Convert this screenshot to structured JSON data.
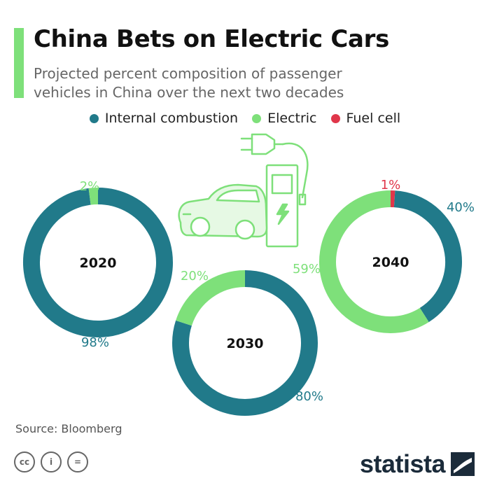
{
  "header": {
    "title": "China Bets on Electric Cars",
    "subtitle": "Projected percent composition of passenger vehicles in China over the next two decades",
    "accent_color": "#7ee07a"
  },
  "legend": [
    {
      "label": "Internal combustion",
      "color": "#217a8a"
    },
    {
      "label": "Electric",
      "color": "#7ee07a"
    },
    {
      "label": "Fuel cell",
      "color": "#e0364a"
    }
  ],
  "chart_data": [
    {
      "type": "pie",
      "center_label": "2020",
      "categories": [
        "Internal combustion",
        "Electric",
        "Fuel cell"
      ],
      "values": [
        98,
        2,
        0
      ],
      "value_labels": [
        "98%",
        "2%",
        ""
      ]
    },
    {
      "type": "pie",
      "center_label": "2030",
      "categories": [
        "Internal combustion",
        "Electric",
        "Fuel cell"
      ],
      "values": [
        80,
        20,
        0
      ],
      "value_labels": [
        "80%",
        "20%",
        ""
      ]
    },
    {
      "type": "pie",
      "center_label": "2040",
      "categories": [
        "Internal combustion",
        "Electric",
        "Fuel cell"
      ],
      "values": [
        40,
        59,
        1
      ],
      "value_labels": [
        "40%",
        "59%",
        "1%"
      ]
    }
  ],
  "footer": {
    "source": "Source: Bloomberg",
    "license_icons": [
      "cc-icon",
      "attribution-icon",
      "no-derivatives-icon"
    ],
    "license_glyphs": [
      "cc",
      "i",
      "="
    ],
    "brand": "statista"
  }
}
